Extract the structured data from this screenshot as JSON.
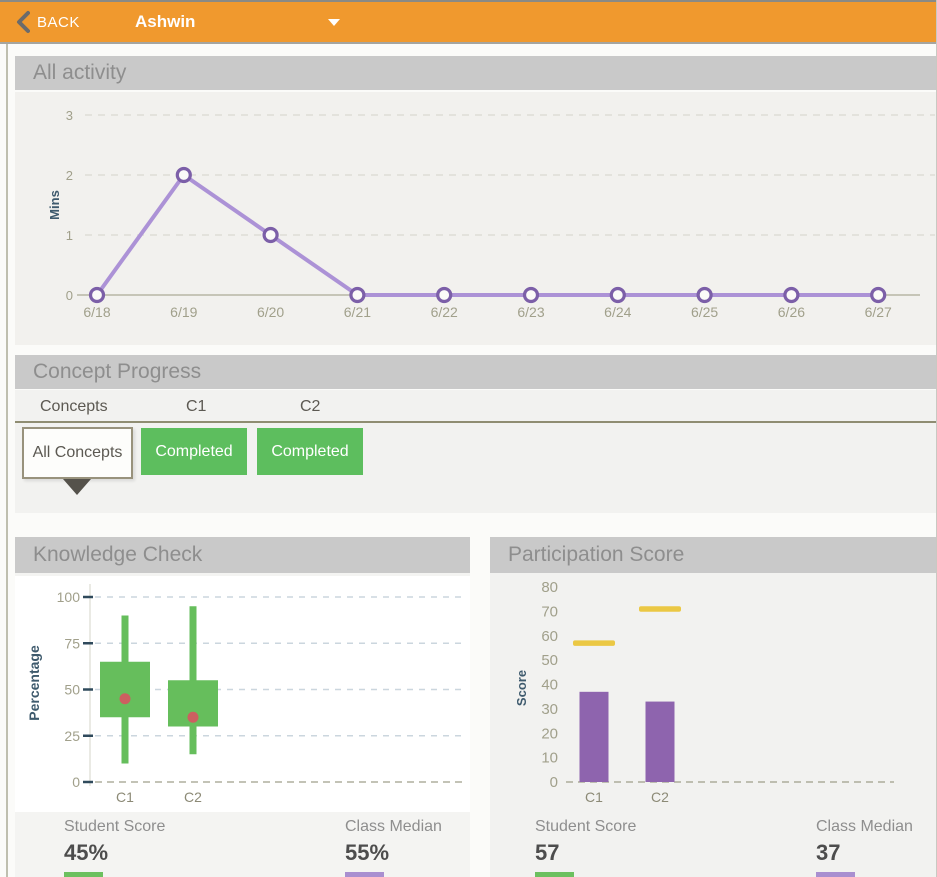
{
  "theme": {
    "header_bg": "#F0992E",
    "section_bar_bg": "#C9C9C9",
    "green": "#5DBE5E",
    "purple": "#8E64AE",
    "yellow": "#EBC844"
  },
  "header": {
    "back_label": "BACK",
    "student_name": "Ashwin",
    "chevron_left_icon": "chevron-left",
    "chevron_down_icon": "chevron-down"
  },
  "all_activity": {
    "title": "All activity",
    "chart_data": {
      "type": "line",
      "x": [
        "6/18",
        "6/19",
        "6/20",
        "6/21",
        "6/22",
        "6/23",
        "6/24",
        "6/25",
        "6/26",
        "6/27"
      ],
      "values": [
        0,
        2,
        1,
        0,
        0,
        0,
        0,
        0,
        0,
        0
      ],
      "ylabel": "Mins",
      "yticks": [
        0,
        1,
        2,
        3
      ],
      "ylim": [
        0,
        3
      ],
      "grid": "dashed-horizontal",
      "line_color": "#AC92D6",
      "marker_ring": "#7C5FA8",
      "marker_fill": "#FBFAF8"
    }
  },
  "concept_progress": {
    "title": "Concept Progress",
    "columns": [
      "Concepts",
      "C1",
      "C2"
    ],
    "filter_label": "All Concepts",
    "statuses": [
      "Completed",
      "Completed"
    ],
    "status_color": "#5DBE5E"
  },
  "knowledge_check": {
    "title": "Knowledge Check",
    "chart_data": {
      "type": "boxplot",
      "categories": [
        "C1",
        "C2"
      ],
      "ylabel": "Percentage",
      "yticks": [
        0,
        25,
        50,
        75,
        100
      ],
      "ylim": [
        0,
        100
      ],
      "grid": "dashed-horizontal",
      "boxes": [
        {
          "category": "C1",
          "whisker_low": 10,
          "box_low": 35,
          "box_high": 65,
          "whisker_high": 90,
          "student_dot": 45
        },
        {
          "category": "C2",
          "whisker_low": 15,
          "box_low": 30,
          "box_high": 55,
          "whisker_high": 95,
          "student_dot": 35
        }
      ],
      "box_color": "#66BE5C",
      "dot_color": "#CC5F60"
    },
    "stats": [
      {
        "label": "Student Score",
        "value": "45%",
        "bar_color": "#6CC05F"
      },
      {
        "label": "Class Median",
        "value": "55%",
        "bar_color": "#A98FD0"
      }
    ]
  },
  "participation_score": {
    "title": "Participation Score",
    "chart_data": {
      "type": "bar",
      "categories": [
        "C1",
        "C2"
      ],
      "ylabel": "Score",
      "yticks": [
        0,
        10,
        20,
        30,
        40,
        50,
        60,
        70,
        80
      ],
      "ylim": [
        0,
        80
      ],
      "grid": "dashed-zero-line",
      "series": [
        {
          "name": "bar-values",
          "values": [
            37,
            33
          ],
          "color": "#8E64AE"
        },
        {
          "name": "dash-markers",
          "values": [
            57,
            71
          ],
          "color": "#EBC844",
          "style": "dash"
        }
      ]
    },
    "stats": [
      {
        "label": "Student Score",
        "value": "57",
        "bar_color": "#6CC05F"
      },
      {
        "label": "Class Median",
        "value": "37",
        "bar_color": "#A98FD0"
      }
    ]
  }
}
